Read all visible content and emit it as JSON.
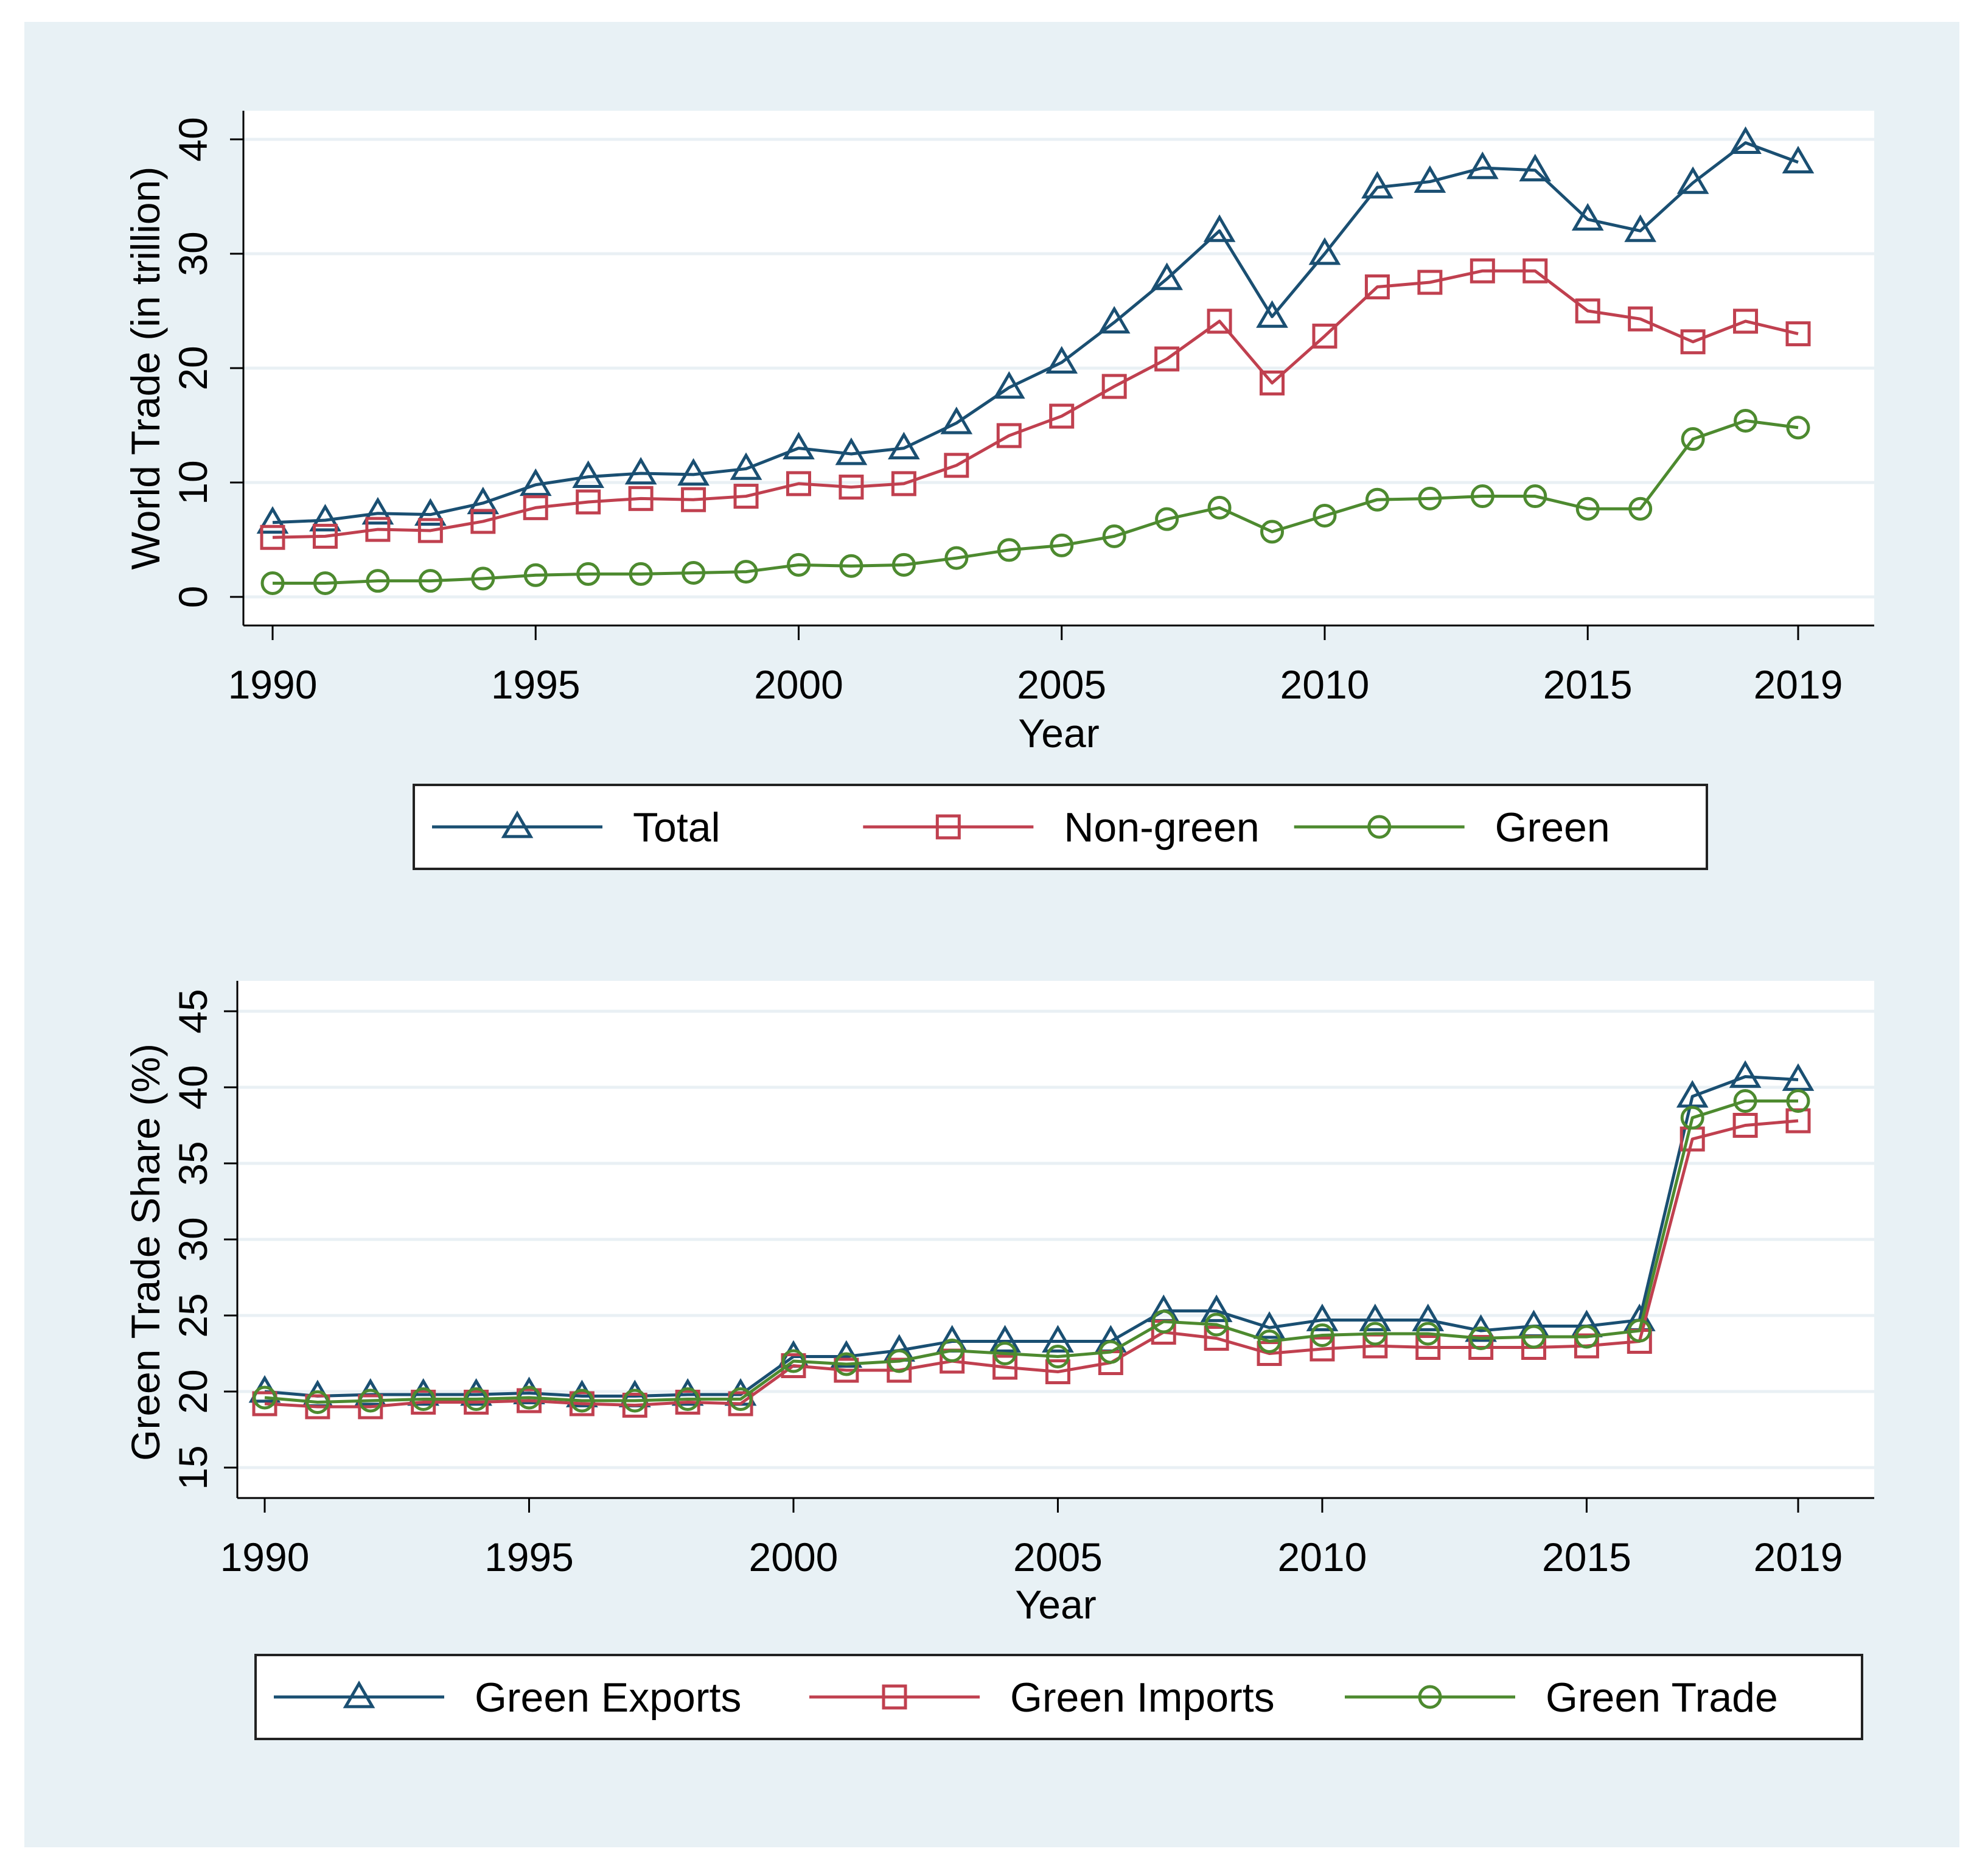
{
  "colors": {
    "outer_background": "#ffffff",
    "panel_background": "#e8f1f5",
    "plot_background": "#ffffff",
    "grid": "#e9f0f4",
    "axis": "#000000",
    "blue": "#1a4f72",
    "red": "#c0404f",
    "green": "#4d8a2f"
  },
  "chart_data": [
    {
      "type": "line",
      "title": "",
      "xlabel": "Year",
      "ylabel": "World Trade (in trillion)",
      "xlim": [
        1990,
        2019
      ],
      "ylim": [
        -2.5,
        42.5
      ],
      "x_ticks": [
        1990,
        1995,
        2000,
        2005,
        2010,
        2015,
        2019
      ],
      "y_ticks": [
        0,
        10,
        20,
        30,
        40
      ],
      "grid": true,
      "x": [
        1990,
        1991,
        1992,
        1993,
        1994,
        1995,
        1996,
        1997,
        1998,
        1999,
        2000,
        2001,
        2002,
        2003,
        2004,
        2005,
        2006,
        2007,
        2008,
        2009,
        2010,
        2011,
        2012,
        2013,
        2014,
        2015,
        2016,
        2017,
        2018,
        2019
      ],
      "legend_position": "bottom",
      "series": [
        {
          "name": "Total",
          "color": "blue",
          "marker": "triangle",
          "values": [
            6.5,
            6.7,
            7.3,
            7.2,
            8.2,
            9.8,
            10.5,
            10.8,
            10.7,
            11.2,
            13.0,
            12.5,
            13.0,
            15.2,
            18.3,
            20.5,
            24.0,
            27.8,
            32.0,
            24.5,
            30.0,
            35.8,
            36.3,
            37.5,
            37.3,
            33.0,
            32.0,
            36.2,
            39.7,
            38.0
          ]
        },
        {
          "name": "Non-green",
          "color": "red",
          "marker": "square",
          "values": [
            5.2,
            5.3,
            5.9,
            5.8,
            6.6,
            7.8,
            8.3,
            8.6,
            8.5,
            8.8,
            9.9,
            9.6,
            9.9,
            11.5,
            14.1,
            15.8,
            18.4,
            20.8,
            24.1,
            18.7,
            22.8,
            27.1,
            27.5,
            28.5,
            28.5,
            25.0,
            24.3,
            22.3,
            24.1,
            23.0
          ]
        },
        {
          "name": "Green",
          "color": "green",
          "marker": "circle",
          "values": [
            1.2,
            1.2,
            1.4,
            1.4,
            1.6,
            1.9,
            2.0,
            2.0,
            2.1,
            2.2,
            2.8,
            2.7,
            2.8,
            3.4,
            4.1,
            4.5,
            5.3,
            6.8,
            7.8,
            5.7,
            7.1,
            8.5,
            8.6,
            8.8,
            8.8,
            7.7,
            7.7,
            13.8,
            15.4,
            14.8
          ]
        }
      ]
    },
    {
      "type": "line",
      "title": "",
      "xlabel": "Year",
      "ylabel": "Green Trade Share (%)",
      "xlim": [
        1990,
        2019
      ],
      "ylim": [
        13,
        47
      ],
      "x_ticks": [
        1990,
        1995,
        2000,
        2005,
        2010,
        2015,
        2019
      ],
      "y_ticks": [
        15,
        20,
        25,
        30,
        35,
        40,
        45
      ],
      "grid": true,
      "x": [
        1990,
        1991,
        1992,
        1993,
        1994,
        1995,
        1996,
        1997,
        1998,
        1999,
        2000,
        2001,
        2002,
        2003,
        2004,
        2005,
        2006,
        2007,
        2008,
        2009,
        2010,
        2011,
        2012,
        2013,
        2014,
        2015,
        2016,
        2017,
        2018,
        2019
      ],
      "legend_position": "bottom",
      "series": [
        {
          "name": "Green Exports",
          "color": "blue",
          "marker": "triangle",
          "values": [
            20.0,
            19.7,
            19.8,
            19.8,
            19.8,
            19.9,
            19.7,
            19.7,
            19.8,
            19.8,
            22.3,
            22.3,
            22.7,
            23.3,
            23.3,
            23.3,
            23.3,
            25.3,
            25.3,
            24.2,
            24.7,
            24.7,
            24.7,
            24.0,
            24.3,
            24.3,
            24.7,
            39.4,
            40.7,
            40.5
          ]
        },
        {
          "name": "Green Imports",
          "color": "red",
          "marker": "square",
          "values": [
            19.2,
            19.0,
            19.0,
            19.3,
            19.3,
            19.4,
            19.2,
            19.1,
            19.3,
            19.2,
            21.7,
            21.4,
            21.4,
            22.0,
            21.6,
            21.3,
            21.9,
            23.9,
            23.5,
            22.5,
            22.8,
            23.0,
            22.9,
            22.9,
            22.9,
            23.0,
            23.3,
            36.6,
            37.5,
            37.8
          ]
        },
        {
          "name": "Green Trade",
          "color": "green",
          "marker": "circle",
          "values": [
            19.6,
            19.3,
            19.4,
            19.5,
            19.5,
            19.6,
            19.4,
            19.4,
            19.5,
            19.5,
            22.0,
            21.8,
            22.0,
            22.7,
            22.5,
            22.3,
            22.6,
            24.6,
            24.4,
            23.3,
            23.7,
            23.8,
            23.8,
            23.5,
            23.6,
            23.6,
            24.0,
            38.0,
            39.1,
            39.1
          ]
        }
      ]
    }
  ]
}
